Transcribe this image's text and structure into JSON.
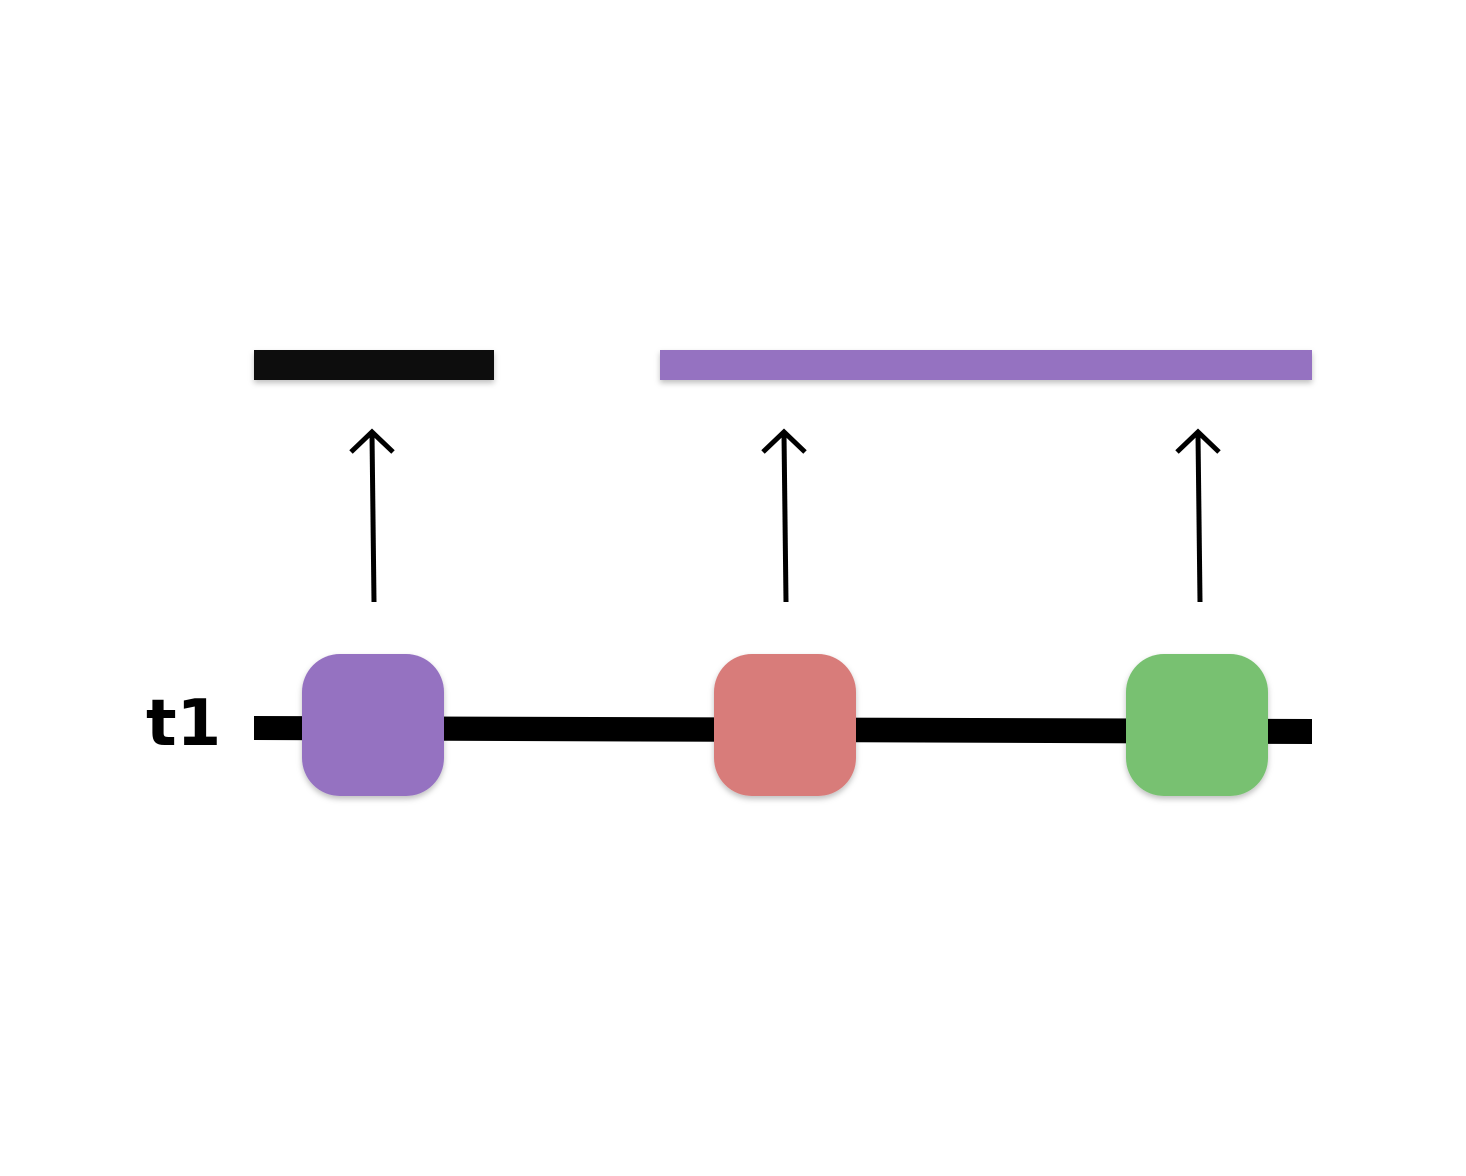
{
  "timeline": {
    "label": "t1",
    "line_color": "#000000"
  },
  "arrow_color": "#000000",
  "output_bars": [
    {
      "name": "black-output-bar",
      "color": "#0a0a0a"
    },
    {
      "name": "purple-output-bar",
      "color": "#9572c1"
    }
  ],
  "nodes": [
    {
      "name": "purple-node",
      "color": "#9572c1"
    },
    {
      "name": "red-node",
      "color": "#d87c7a"
    },
    {
      "name": "green-node",
      "color": "#78c171"
    }
  ]
}
